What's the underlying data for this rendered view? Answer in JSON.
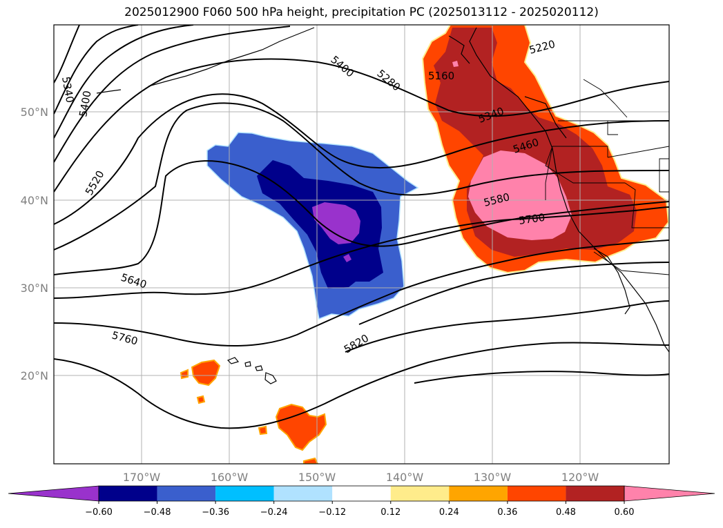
{
  "title": "2025012900 F060 500 hPa height, precipitation PC (2025013112 - 2025020112)",
  "lon_labels": [
    "170°W",
    "160°W",
    "150°W",
    "140°W",
    "130°W",
    "120°W"
  ],
  "lat_labels": [
    "50°N",
    "40°N",
    "30°N",
    "20°N"
  ],
  "contour_labels": [
    "5160",
    "5220",
    "5280",
    "5340",
    "5340",
    "5400",
    "5400",
    "5460",
    "5520",
    "5580",
    "5640",
    "5700",
    "5760",
    "5820"
  ],
  "colorbar": {
    "ticks": [
      "−0.60",
      "−0.48",
      "−0.36",
      "−0.24",
      "−0.12",
      "0.12",
      "0.24",
      "0.36",
      "0.48",
      "0.60"
    ],
    "colors": [
      "#9932CC",
      "#00008B",
      "#3A5FCD",
      "#00BFFF",
      "#B0E2FF",
      "#FFFFFF",
      "#FFEC8B",
      "#FFA500",
      "#FF4500",
      "#B22222",
      "#FF82AB"
    ]
  },
  "fill_colors": {
    "neg_light": "#B0E2FF",
    "neg_mid": "#3A5FCD",
    "neg_strong": "#00008B",
    "neg_max": "#9932CC",
    "pos_light": "#FFEC8B",
    "pos_low": "#FFA500",
    "pos_mid": "#FF4500",
    "pos_strong": "#B22222",
    "pos_max": "#FF82AB"
  }
}
